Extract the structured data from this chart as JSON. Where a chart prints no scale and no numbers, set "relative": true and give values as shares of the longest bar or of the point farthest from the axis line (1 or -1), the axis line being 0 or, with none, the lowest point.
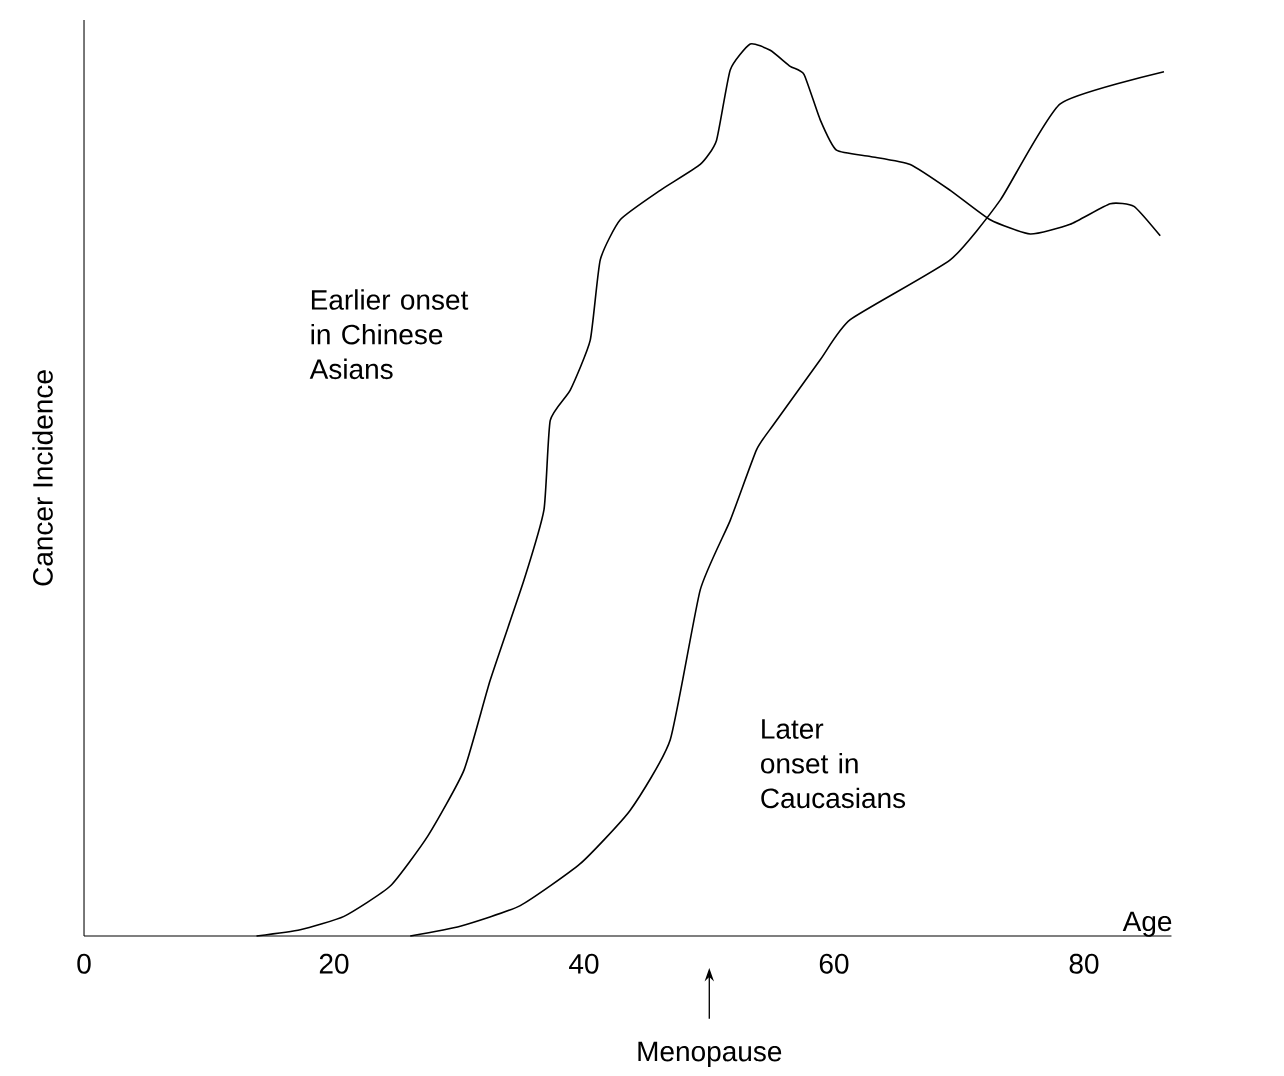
{
  "chart_data": {
    "type": "line",
    "relative": true,
    "xlabel": "Age",
    "ylabel": "Cancer Incidence",
    "xlim": [
      0,
      87
    ],
    "xticks": [
      0,
      20,
      40,
      60,
      80
    ],
    "marker": "none",
    "line_style": "solid",
    "series": [
      {
        "color": "#000000",
        "x": [
          13.8,
          17.3,
          20.8,
          24.5,
          27.5,
          30.4,
          32.5,
          35.2,
          36.8,
          37.3,
          38.9,
          40.5,
          41.3,
          42.9,
          46.1,
          49.3,
          50.6,
          51.7,
          53.3,
          54.9,
          56.5,
          57.6,
          58.9,
          60.2,
          62.9,
          66.1,
          69.3,
          72.5,
          75.7,
          78.9,
          82.1,
          84,
          86.1
        ],
        "values": [
          0,
          0.007,
          0.022,
          0.056,
          0.112,
          0.186,
          0.287,
          0.399,
          0.478,
          0.578,
          0.612,
          0.668,
          0.758,
          0.803,
          0.836,
          0.865,
          0.892,
          0.971,
          1.0,
          0.993,
          0.975,
          0.966,
          0.915,
          0.881,
          0.874,
          0.865,
          0.836,
          0.803,
          0.787,
          0.798,
          0.821,
          0.818,
          0.785
        ]
      },
      {
        "color": "#000000",
        "x": [
          26.1,
          30.1,
          34.9,
          39.7,
          43.7,
          46.9,
          49.3,
          51.7,
          53.8,
          55.2,
          58.9,
          61.3,
          69.3,
          73.3,
          78.1,
          86.4
        ],
        "values": [
          0,
          0.011,
          0.034,
          0.081,
          0.141,
          0.22,
          0.388,
          0.466,
          0.545,
          0.574,
          0.646,
          0.691,
          0.758,
          0.825,
          0.933,
          0.969
        ]
      }
    ],
    "annotations": [
      "Earlier onset in Chinese Asians",
      "Later onset in Caucasians",
      "Menopause"
    ]
  }
}
